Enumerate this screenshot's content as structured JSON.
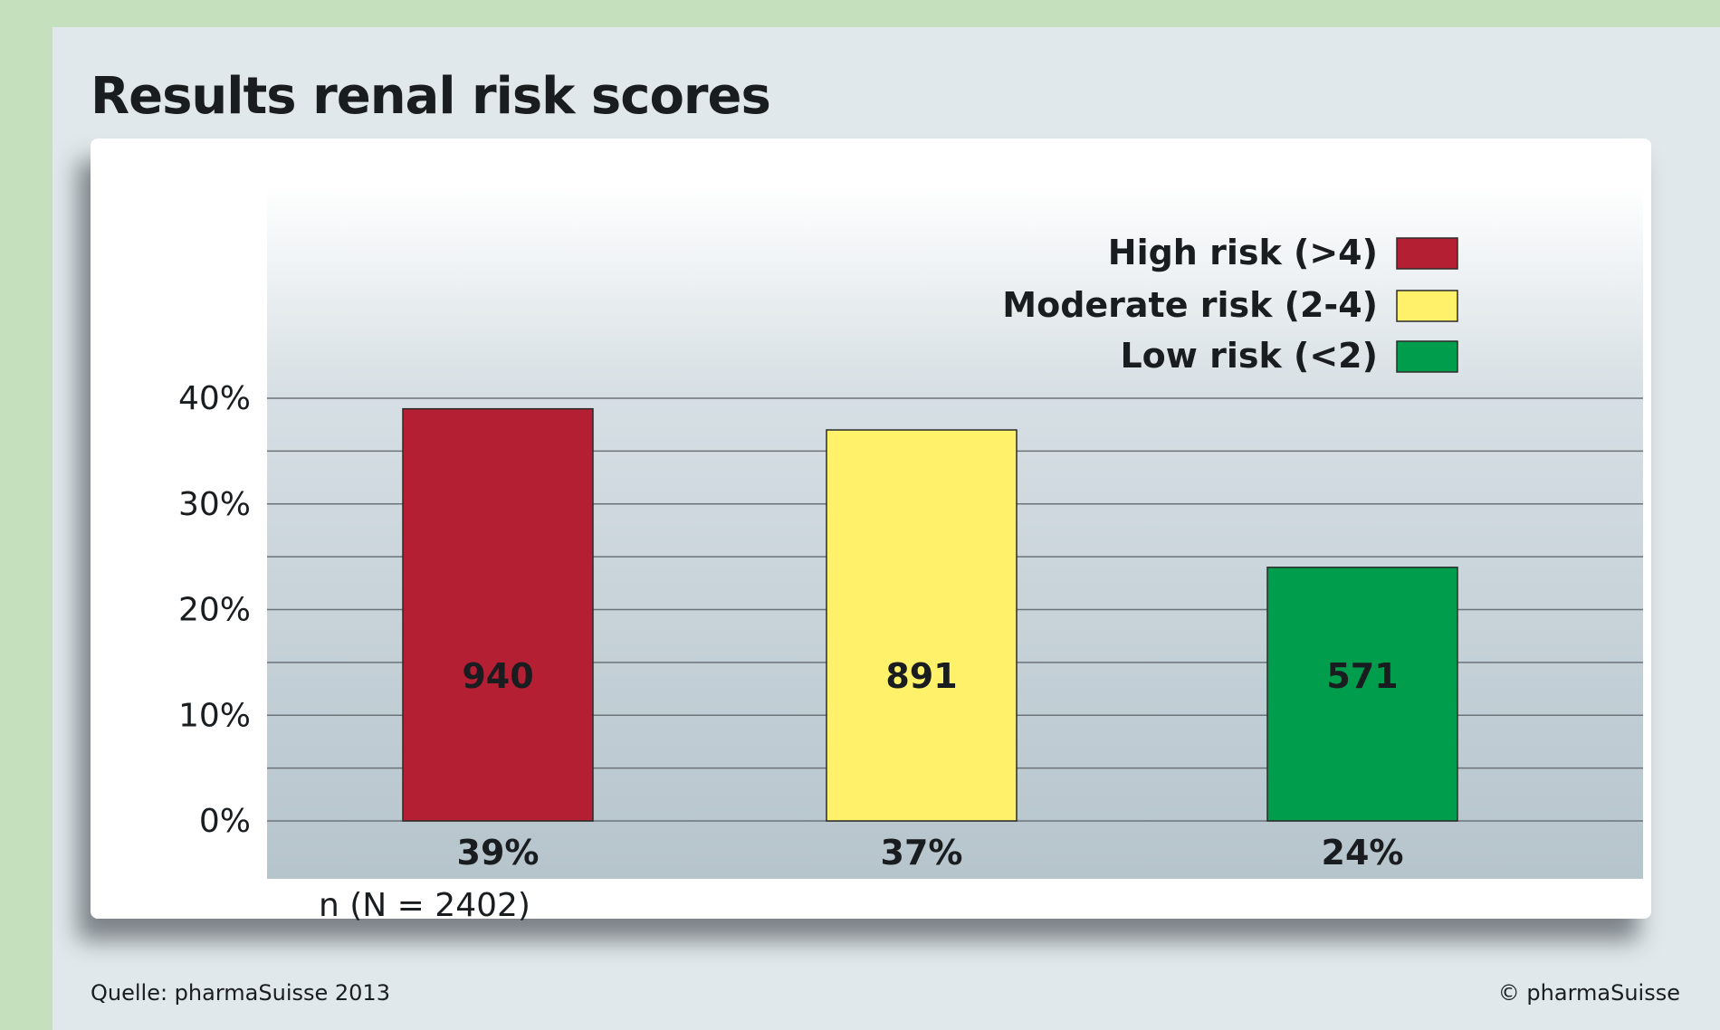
{
  "page": {
    "title": "Results renal risk scores",
    "source": "Quelle: pharmaSuisse 2013",
    "copyright": "© pharmaSuisse"
  },
  "colors": {
    "high": "#b41f33",
    "moderate": "#fff26a",
    "low": "#009e4c",
    "panel_bg": "#e1e8eb",
    "outer_bg": "#c5e0bd"
  },
  "chart_data": {
    "type": "bar",
    "title": "Results renal risk scores",
    "xlabel": "n (N = 2402)",
    "ylabel": "",
    "ylim": [
      0,
      40
    ],
    "yticks": [
      "0%",
      "10%",
      "20%",
      "30%",
      "40%"
    ],
    "grid": true,
    "legend_position": "top-right",
    "series": [
      {
        "name": "High risk (>4)",
        "value": 39,
        "count": "940",
        "percent_label": "39%",
        "color": "#b41f33"
      },
      {
        "name": "Moderate risk (2-4)",
        "value": 37,
        "count": "891",
        "percent_label": "37%",
        "color": "#fff26a"
      },
      {
        "name": "Low risk (<2)",
        "value": 24,
        "count": "571",
        "percent_label": "24%",
        "color": "#009e4c"
      }
    ]
  }
}
